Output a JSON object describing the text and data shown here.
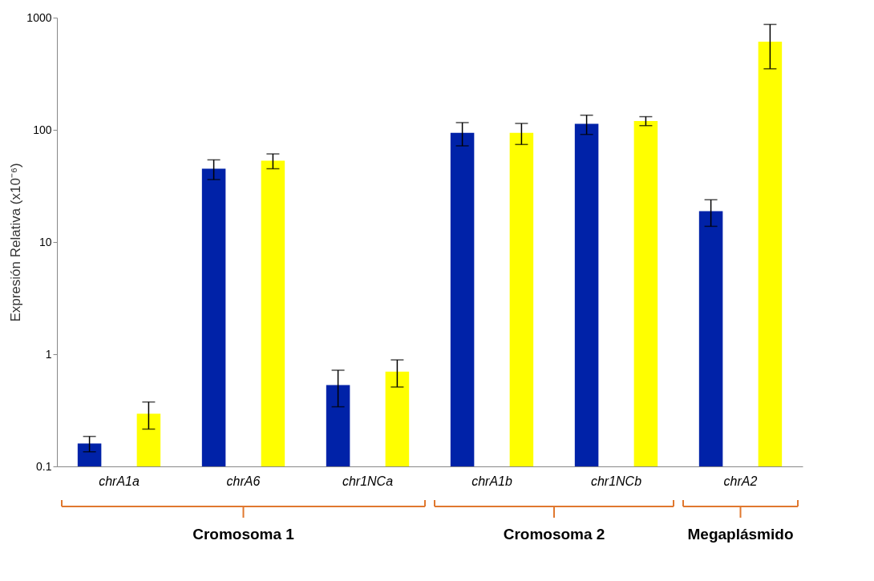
{
  "chart_data": {
    "type": "bar",
    "ylabel": "Expresión Relativa (x10⁻⁶)",
    "categories": [
      "chrA1a",
      "chrA6",
      "chr1NCa",
      "chrA1b",
      "chr1NCb",
      "chrA2"
    ],
    "series": [
      {
        "color": "#0022a8",
        "values": [
          0.16,
          45,
          0.53,
          94,
          113,
          18.8
        ],
        "errors": [
          0.025,
          9,
          0.19,
          22,
          22,
          5
        ]
      },
      {
        "color": "#ffff00",
        "values": [
          0.295,
          53,
          0.7,
          94,
          120,
          610
        ],
        "errors": [
          0.08,
          8,
          0.19,
          20,
          11,
          260
        ]
      }
    ],
    "log": true,
    "ylim": [
      0.1,
      1000
    ],
    "yticks": [
      0.1,
      1,
      10,
      100,
      1000
    ],
    "grid": false,
    "legend": false,
    "annotations": [
      "Cromosoma 1",
      "Cromosoma 2",
      "Megaplásmido"
    ]
  }
}
